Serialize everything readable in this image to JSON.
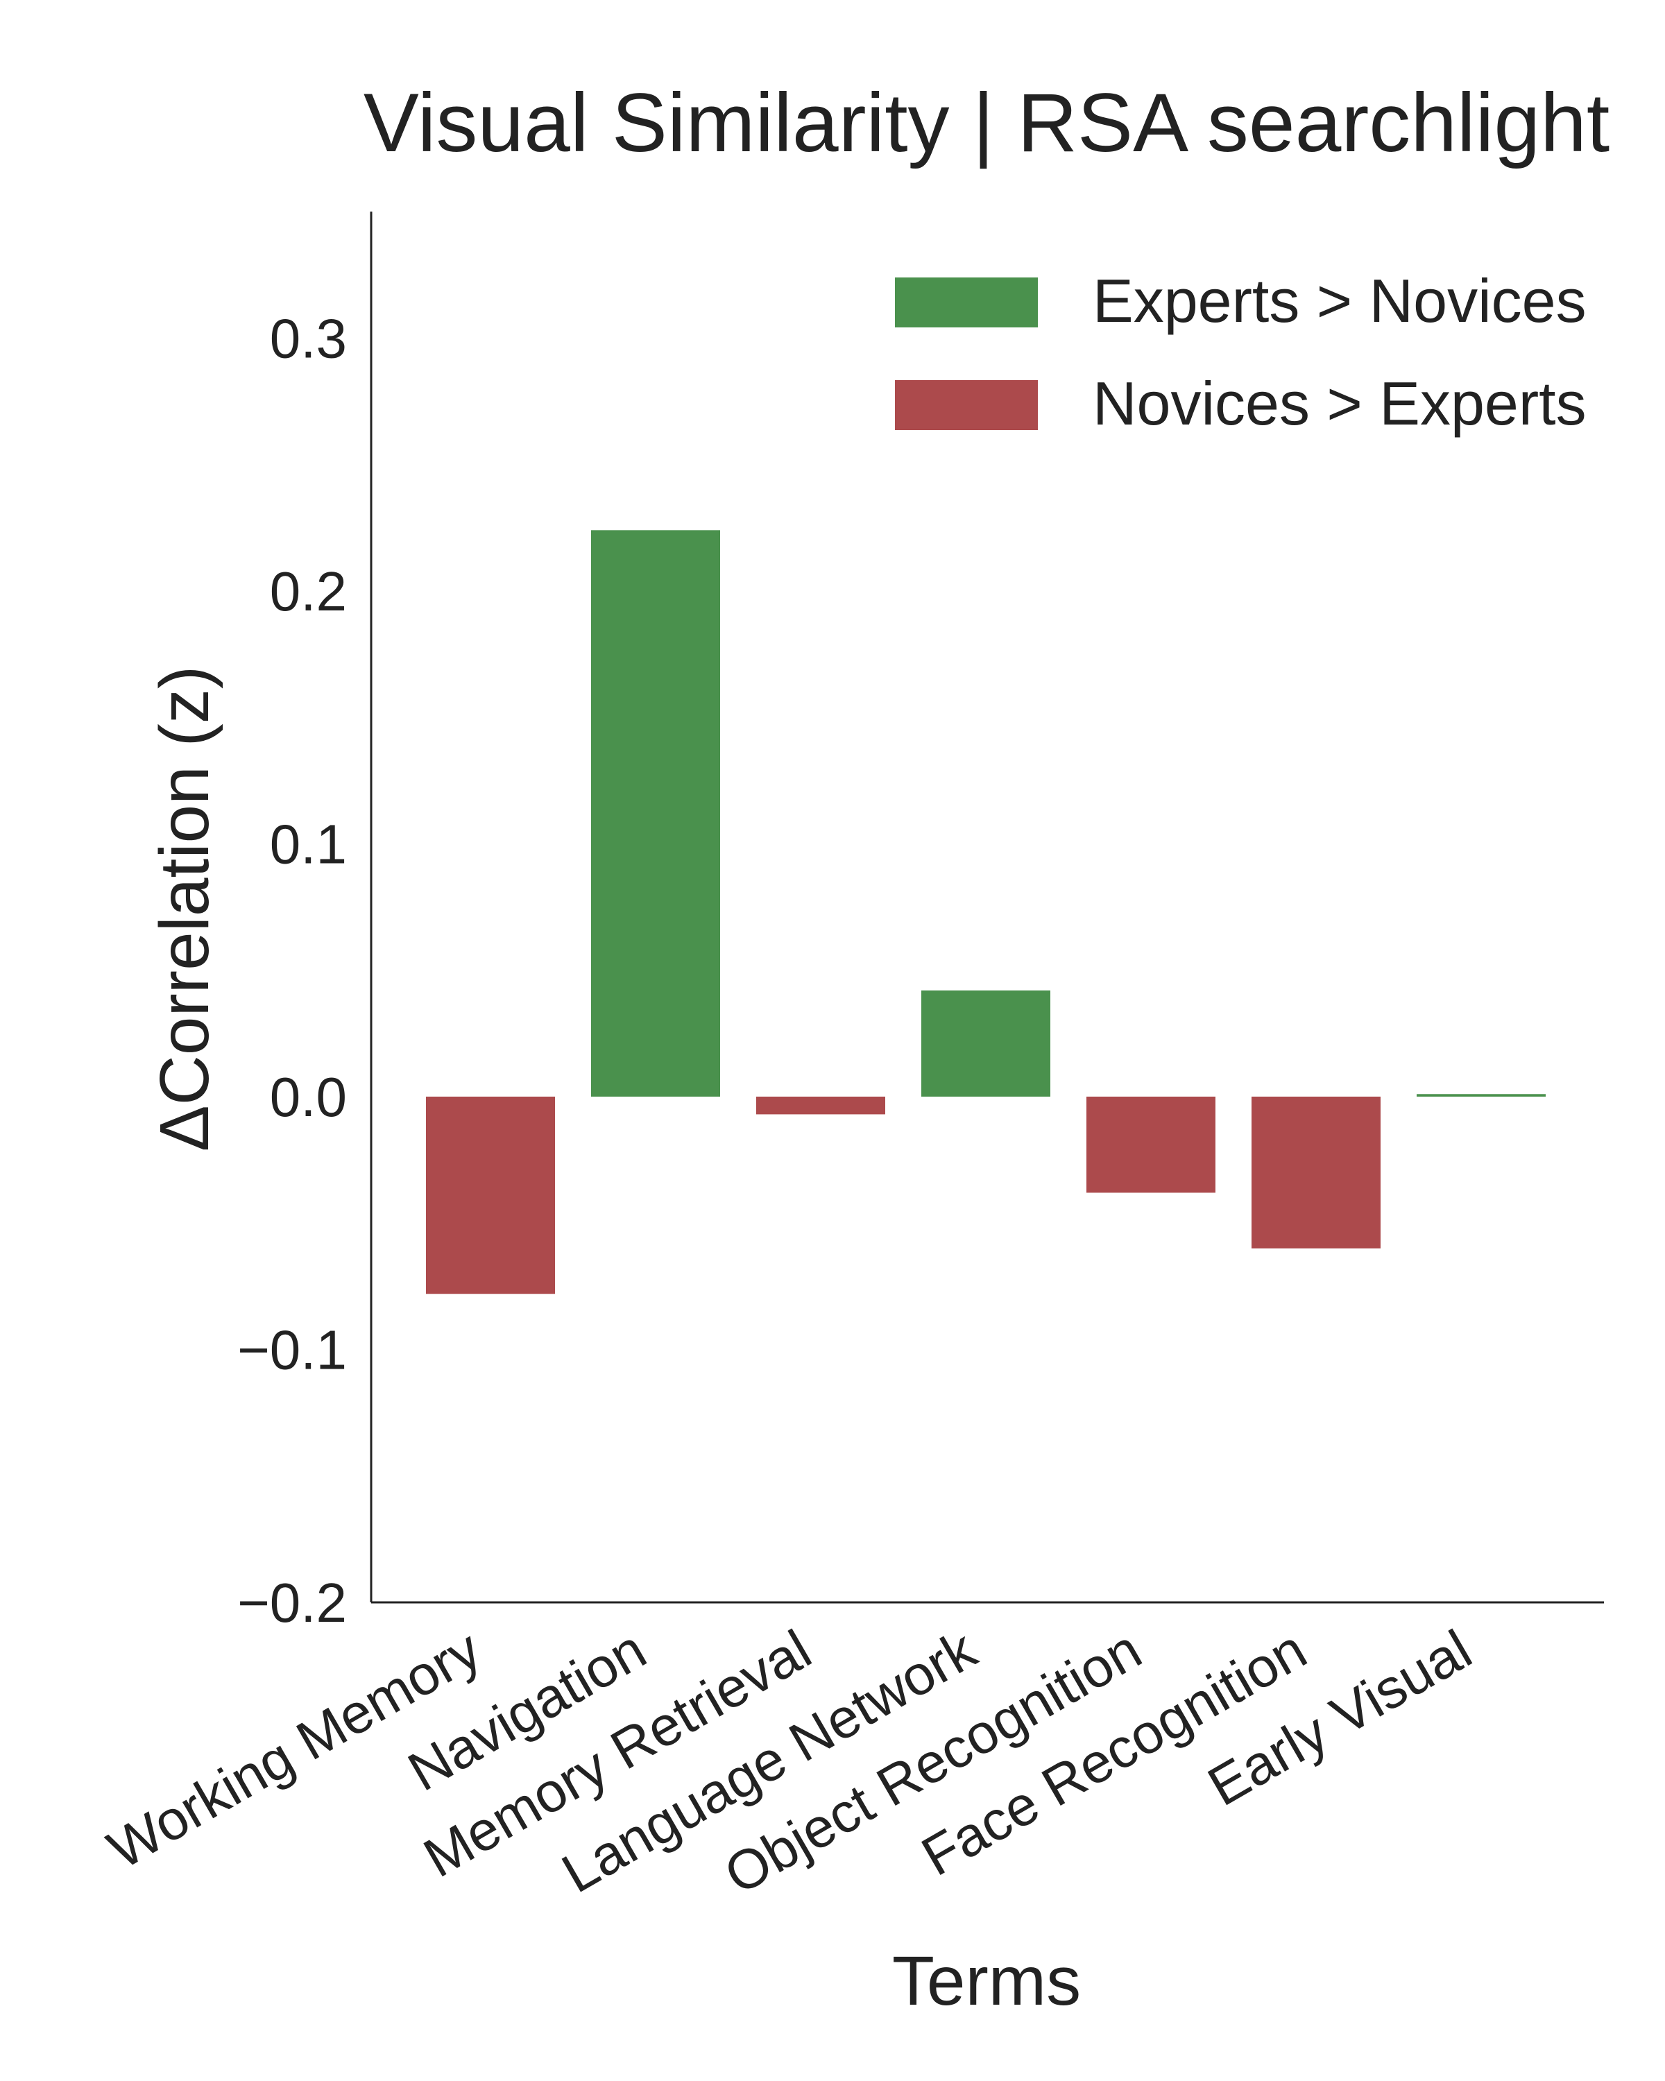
{
  "chart_data": {
    "type": "bar",
    "title": "Visual Similarity | RSA searchlight",
    "xlabel": "Terms",
    "ylabel": "ΔCorrelation (z)",
    "ylim": [
      -0.2,
      0.35
    ],
    "yticks": [
      -0.2,
      -0.1,
      0.0,
      0.1,
      0.2,
      0.3
    ],
    "ytick_labels": [
      "−0.2",
      "−0.1",
      "0.0",
      "0.1",
      "0.2",
      "0.3"
    ],
    "categories": [
      "Working Memory",
      "Navigation",
      "Memory Retrieval",
      "Language Network",
      "Object Recognition",
      "Face Recognition",
      "Early Visual"
    ],
    "values": [
      -0.078,
      0.224,
      -0.007,
      0.042,
      -0.038,
      -0.06,
      0.001
    ],
    "legend": {
      "placement": "top-right",
      "entries": [
        {
          "label": "Experts > Novices",
          "color": "#4a914d"
        },
        {
          "label": "Novices > Experts",
          "color": "#ac4a4c"
        }
      ]
    },
    "colors": {
      "positive": "#4a914d",
      "negative": "#ac4a4c",
      "axis": "#222222"
    },
    "grid": false
  }
}
